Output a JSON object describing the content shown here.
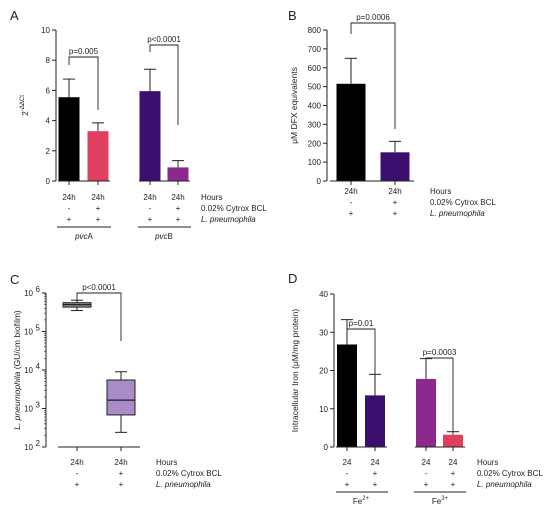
{
  "chart_data": [
    {
      "panel": "A",
      "type": "bar",
      "ylabel_base": "2",
      "ylabel_sup": "-ΔΔCt",
      "ylim": [
        0,
        10
      ],
      "yticks": [
        "0",
        "2",
        "4",
        "6",
        "8",
        "10"
      ],
      "bars": [
        {
          "x_label": "24h",
          "value": 5.55,
          "err": 1.2,
          "color": "#000000",
          "cytrox": "-",
          "lp": "+"
        },
        {
          "x_label": "24h",
          "value": 3.3,
          "err": 0.55,
          "color": "#e0405e",
          "cytrox": "+",
          "lp": "+"
        },
        {
          "x_label": "24h",
          "value": 5.95,
          "err": 1.45,
          "color": "#3b0f6e",
          "cytrox": "-",
          "lp": "+"
        },
        {
          "x_label": "24h",
          "value": 0.9,
          "err": 0.45,
          "color": "#8b2a8c",
          "cytrox": "+",
          "lp": "+"
        }
      ],
      "groups": [
        {
          "prefix": "pvc",
          "suffix": "A"
        },
        {
          "prefix": "pvc",
          "suffix": "B"
        }
      ],
      "pvalues": [
        "p=0.005",
        "p<0.0001"
      ],
      "condition_labels": [
        "Hours",
        "0.02% Cytrox BCL",
        "L. pneumophila"
      ]
    },
    {
      "panel": "B",
      "type": "bar",
      "ylabel": "μM DFX equivalents",
      "ylim": [
        0,
        800
      ],
      "yticks": [
        "0",
        "100",
        "200",
        "300",
        "400",
        "500",
        "600",
        "700",
        "800"
      ],
      "bars": [
        {
          "x_label": "24h",
          "value": 515,
          "err": 135,
          "color": "#000000",
          "cytrox": "-",
          "lp": "+"
        },
        {
          "x_label": "24h",
          "value": 152,
          "err": 58,
          "color": "#3b0f6e",
          "cytrox": "+",
          "lp": "+"
        }
      ],
      "pvalues": [
        "p=0.0006"
      ],
      "condition_labels": [
        "Hours",
        "0.02% Cytrox BCL",
        "L. pneumophila"
      ]
    },
    {
      "panel": "C",
      "type": "box",
      "ylabel_italic": "L. pneumophila",
      "ylabel_rest": " (GU/cm biofilm)",
      "yscale": "log",
      "ylim": [
        100,
        1000000
      ],
      "yticks_base": [
        "10",
        "10",
        "10",
        "10",
        "10"
      ],
      "yticks_exp": [
        "2",
        "3",
        "4",
        "5",
        "6"
      ],
      "boxes": [
        {
          "x_label": "24h",
          "min": 350000,
          "q1": 430000,
          "median": 500000,
          "q3": 560000,
          "max": 650000,
          "color": "#8e8e8e",
          "cytrox": "-",
          "lp": "+"
        },
        {
          "x_label": "24h",
          "min": 240,
          "q1": 680,
          "median": 1650,
          "q3": 5500,
          "max": 9000,
          "color": "#a98bc7",
          "cytrox": "+",
          "lp": "+"
        }
      ],
      "pvalues": [
        "p<0.0001"
      ],
      "condition_labels": [
        "Hours",
        "0.02% Cytrox BCL",
        "L. pneumophila"
      ]
    },
    {
      "panel": "D",
      "type": "bar",
      "ylabel": "Intracellular Iron (μM/mg protein)",
      "ylim": [
        0,
        40
      ],
      "yticks": [
        "0",
        "10",
        "20",
        "30",
        "40"
      ],
      "bars": [
        {
          "x_label": "24",
          "value": 26.8,
          "err": 6.5,
          "color": "#000000",
          "cytrox": "-",
          "lp": "+"
        },
        {
          "x_label": "24",
          "value": 13.5,
          "err": 5.5,
          "color": "#3b0f6e",
          "cytrox": "+",
          "lp": "+"
        },
        {
          "x_label": "24",
          "value": 17.8,
          "err": 5.3,
          "color": "#8b2a8c",
          "cytrox": "-",
          "lp": "+"
        },
        {
          "x_label": "24",
          "value": 3.2,
          "err": 0.8,
          "color": "#e0405e",
          "cytrox": "+",
          "lp": "+"
        }
      ],
      "groups": [
        {
          "prefix": "Fe",
          "suffix": "2+"
        },
        {
          "prefix": "Fe",
          "suffix": "3+"
        }
      ],
      "pvalues": [
        "p=0.01",
        "p=0.0003"
      ],
      "condition_labels": [
        "Hours",
        "0.02% Cytrox BCL",
        "L. pneumophila"
      ]
    }
  ]
}
